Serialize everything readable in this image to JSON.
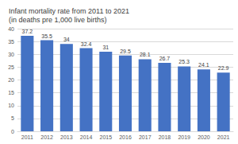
{
  "chart_data": {
    "type": "bar",
    "title": "Infant mortality rate from 2011 to 2021 (in deaths pre 1,000 live births)",
    "categories": [
      "2011",
      "2012",
      "2013",
      "2014",
      "2015",
      "2016",
      "2017",
      "2018",
      "2019",
      "2020",
      "2021"
    ],
    "values": [
      37.2,
      35.5,
      34,
      32.4,
      31,
      29.5,
      28.1,
      26.7,
      25.3,
      24.1,
      22.9
    ],
    "color": "#4472c4",
    "ylim": [
      0,
      40
    ],
    "yticks": [
      0,
      5,
      10,
      15,
      20,
      25,
      30,
      35,
      40
    ],
    "grid": true,
    "data_labels": true
  }
}
